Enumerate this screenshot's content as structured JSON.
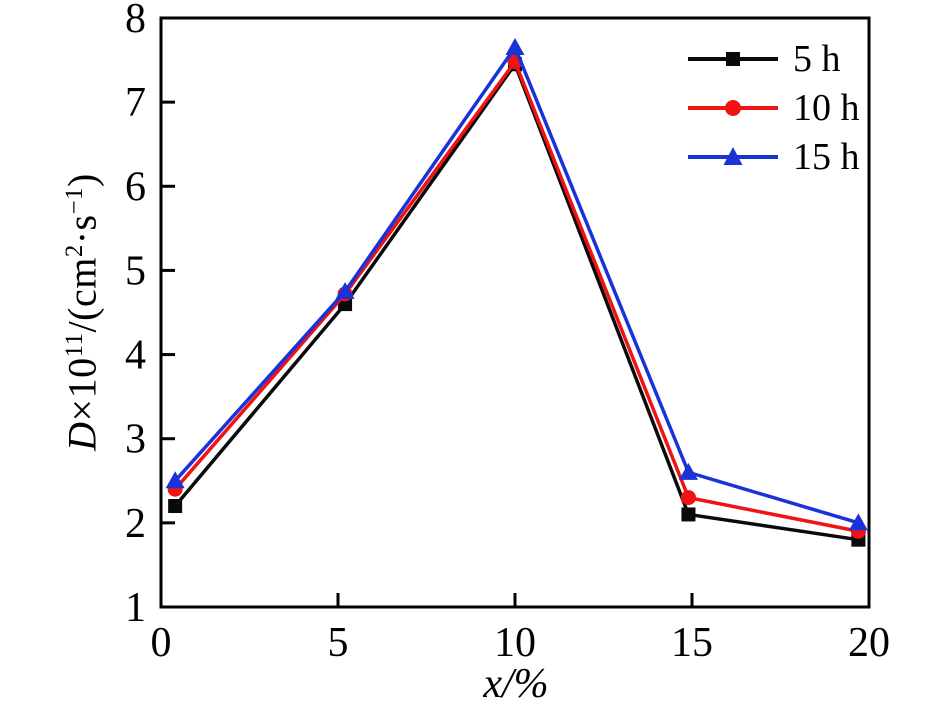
{
  "figure": {
    "background": "#ffffff",
    "axis_color": "#000000"
  },
  "labels": {
    "xlabel_var": "x",
    "xlabel_sep": "/%",
    "ylabel_var": "D",
    "ylabel_times": "×10",
    "ylabel_exp": "11",
    "ylabel_open": "/(cm",
    "ylabel_exp2": "2",
    "ylabel_dot_s": "·s",
    "ylabel_exp3": "−1",
    "ylabel_close": ")"
  },
  "chart_data": {
    "type": "line",
    "title": "",
    "xlabel": "x/%",
    "ylabel": "D×10^11/(cm^2·s^-1)",
    "xlim": [
      0,
      20
    ],
    "ylim": [
      1,
      8
    ],
    "x_ticks": [
      0,
      5,
      10,
      15,
      20
    ],
    "y_ticks": [
      1,
      2,
      3,
      4,
      5,
      6,
      7,
      8
    ],
    "grid": false,
    "legend_position": "top-right-inside",
    "x": [
      0.4,
      5.2,
      10,
      14.9,
      19.7
    ],
    "series": [
      {
        "name": "5 h",
        "color": "#0a0a0a",
        "marker": "square",
        "values": [
          2.2,
          4.6,
          7.45,
          2.1,
          1.8
        ]
      },
      {
        "name": "10 h",
        "color": "#f11212",
        "marker": "circle",
        "values": [
          2.4,
          4.72,
          7.48,
          2.3,
          1.9
        ]
      },
      {
        "name": "15 h",
        "color": "#1933d8",
        "marker": "triangle",
        "values": [
          2.5,
          4.75,
          7.65,
          2.6,
          2.0
        ]
      }
    ]
  }
}
